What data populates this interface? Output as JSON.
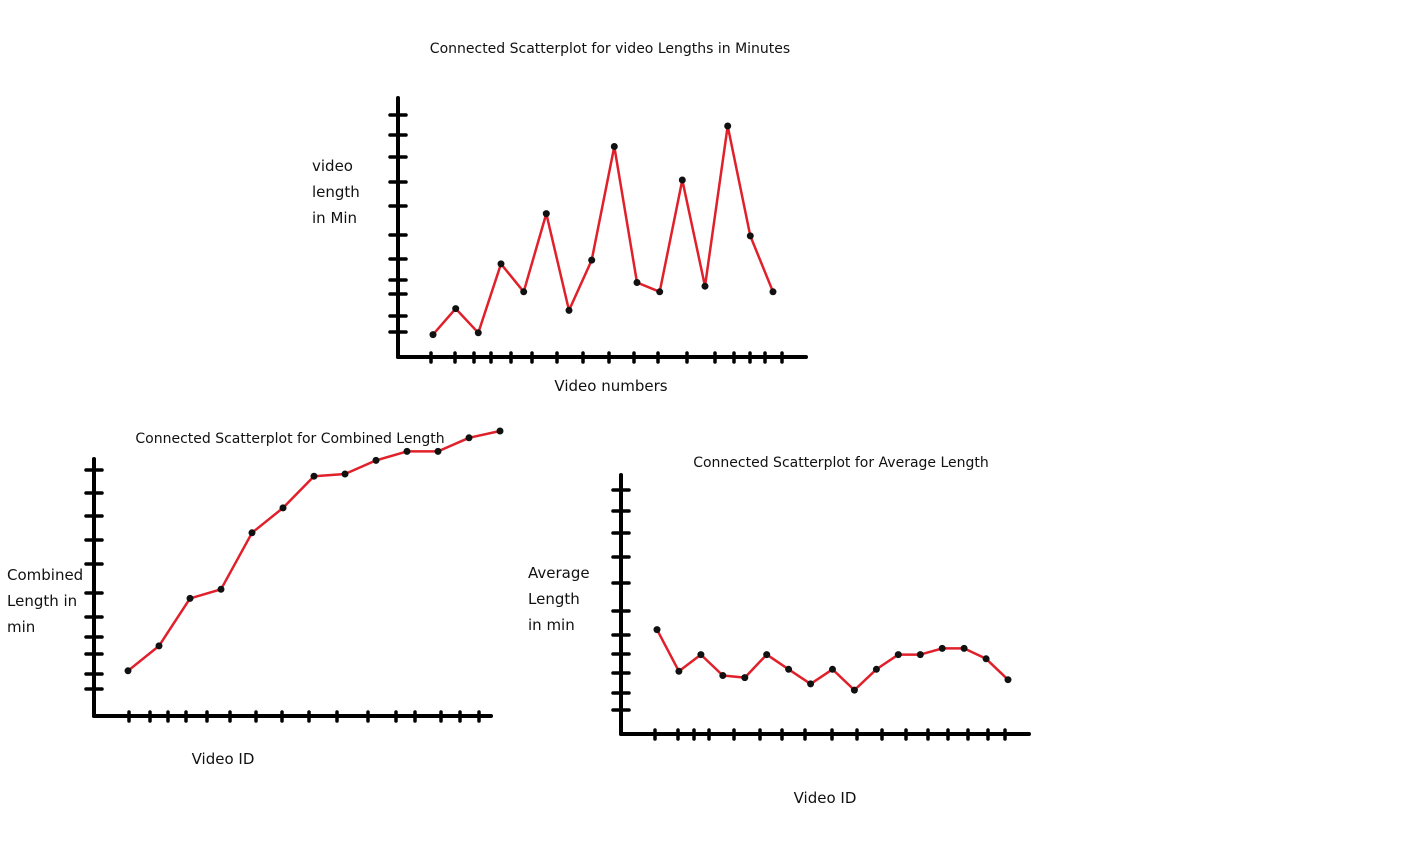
{
  "chart_data": [
    {
      "type": "line",
      "title": "Connected Scatterplot for video Lengths in Minutes",
      "xlabel": "Video numbers",
      "ylabel": [
        "video",
        "length",
        "in Min"
      ],
      "x": [
        1,
        2,
        3,
        4,
        5,
        6,
        7,
        8,
        9,
        10,
        11,
        12,
        13,
        14,
        15,
        16
      ],
      "series": [
        {
          "values": [
            1.2,
            2.6,
            1.3,
            5.0,
            3.5,
            7.7,
            2.5,
            5.2,
            11.3,
            4.0,
            3.5,
            9.5,
            3.8,
            12.4,
            6.5,
            3.5
          ]
        }
      ],
      "colors": {
        "line": "#e0202a",
        "marker": "#111111",
        "axis": "#000000"
      }
    },
    {
      "type": "line",
      "title": "Connected Scatterplot for Combined Length",
      "xlabel": "Video ID",
      "ylabel": [
        "Combined",
        "Length in",
        "min"
      ],
      "x": [
        1,
        2,
        3,
        4,
        5,
        6,
        7,
        8,
        9,
        10,
        11,
        12,
        13
      ],
      "series": [
        {
          "values": [
            2.0,
            3.1,
            5.2,
            5.6,
            8.1,
            9.2,
            10.6,
            10.7,
            11.3,
            11.7,
            11.7,
            12.3,
            12.6
          ]
        }
      ],
      "colors": {
        "line": "#e0202a",
        "marker": "#111111",
        "axis": "#000000"
      }
    },
    {
      "type": "line",
      "title": "Connected Scatterplot for Average Length",
      "xlabel": "Video ID",
      "ylabel": [
        "Average",
        "Length",
        "in min"
      ],
      "x": [
        1,
        2,
        3,
        4,
        5,
        6,
        7,
        8,
        9,
        10,
        11,
        12,
        13,
        14,
        15,
        16,
        17
      ],
      "series": [
        {
          "values": [
            5.0,
            3.0,
            3.8,
            2.8,
            2.7,
            3.8,
            3.1,
            2.4,
            3.1,
            2.1,
            3.1,
            3.8,
            3.8,
            4.1,
            4.1,
            3.6,
            2.6
          ]
        }
      ],
      "colors": {
        "line": "#e0202a",
        "marker": "#111111",
        "axis": "#000000"
      }
    }
  ]
}
